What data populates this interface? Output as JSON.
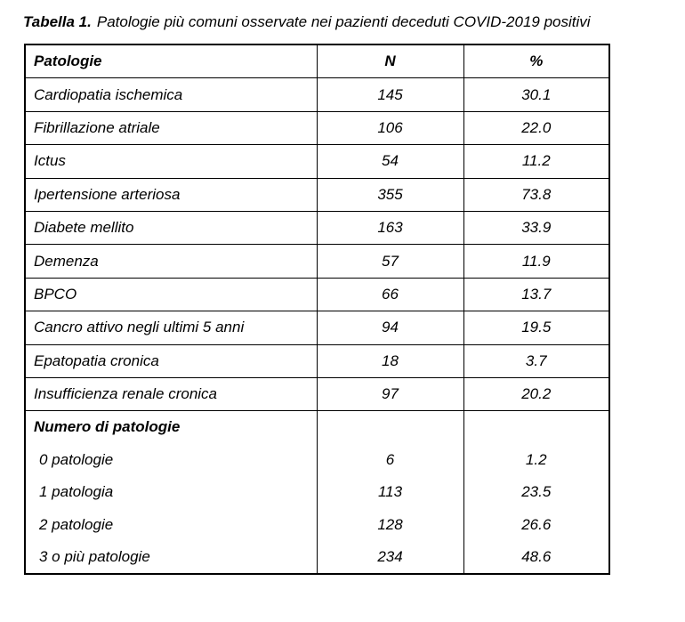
{
  "caption": {
    "label": "Tabella 1.",
    "text": "Patologie più comuni osservate nei pazienti deceduti COVID-2019 positivi"
  },
  "table": {
    "headers": {
      "patologia": "Patologie",
      "n": "N",
      "pct": "%"
    },
    "rows": [
      {
        "patologia": "Cardiopatia ischemica",
        "n": "145",
        "pct": "30.1"
      },
      {
        "patologia": "Fibrillazione atriale",
        "n": "106",
        "pct": "22.0"
      },
      {
        "patologia": "Ictus",
        "n": "54",
        "pct": "11.2"
      },
      {
        "patologia": "Ipertensione arteriosa",
        "n": "355",
        "pct": "73.8"
      },
      {
        "patologia": "Diabete mellito",
        "n": "163",
        "pct": "33.9"
      },
      {
        "patologia": "Demenza",
        "n": "57",
        "pct": "11.9"
      },
      {
        "patologia": "BPCO",
        "n": "66",
        "pct": "13.7"
      },
      {
        "patologia": "Cancro attivo negli ultimi 5 anni",
        "n": "94",
        "pct": "19.5"
      },
      {
        "patologia": "Epatopatia cronica",
        "n": "18",
        "pct": "3.7"
      },
      {
        "patologia": "Insufficienza renale cronica",
        "n": "97",
        "pct": "20.2"
      }
    ],
    "section": {
      "header": "Numero di patologie",
      "rows": [
        {
          "patologia": "0 patologie",
          "n": "6",
          "pct": "1.2"
        },
        {
          "patologia": "1 patologia",
          "n": "113",
          "pct": "23.5"
        },
        {
          "patologia": "2 patologie",
          "n": "128",
          "pct": "26.6"
        },
        {
          "patologia": "3 o più patologie",
          "n": "234",
          "pct": "48.6"
        }
      ]
    }
  }
}
